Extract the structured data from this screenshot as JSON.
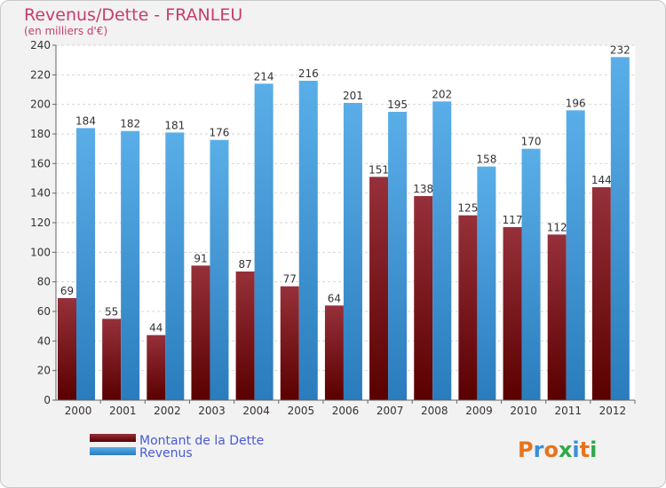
{
  "chart_data": {
    "type": "bar",
    "title": "Revenus/Dette - FRANLEU",
    "subtitle": "(en milliers d'€)",
    "xlabel": "",
    "ylabel": "",
    "ylim": [
      0,
      240
    ],
    "yticks": [
      0,
      20,
      40,
      60,
      80,
      100,
      120,
      140,
      160,
      180,
      200,
      220,
      240
    ],
    "grid": true,
    "legend_position": "bottom-left",
    "categories": [
      "2000",
      "2001",
      "2002",
      "2003",
      "2004",
      "2005",
      "2006",
      "2007",
      "2008",
      "2009",
      "2010",
      "2011",
      "2012"
    ],
    "series": [
      {
        "name": "Montant de la Dette",
        "values": [
          69,
          55,
          44,
          91,
          87,
          77,
          64,
          151,
          138,
          125,
          117,
          112,
          144
        ]
      },
      {
        "name": "Revenus",
        "values": [
          184,
          182,
          181,
          176,
          214,
          216,
          201,
          195,
          202,
          158,
          170,
          196,
          232
        ]
      }
    ]
  },
  "colors": {
    "dette_top": "#96303a",
    "dette_bottom": "#5a0000",
    "revenus_top": "#5aaee8",
    "revenus_bottom": "#2a7cbc",
    "title": "#c83c6e",
    "legend_text": "#4a5ad8"
  },
  "branding": {
    "logo_text": "Proxiti"
  }
}
